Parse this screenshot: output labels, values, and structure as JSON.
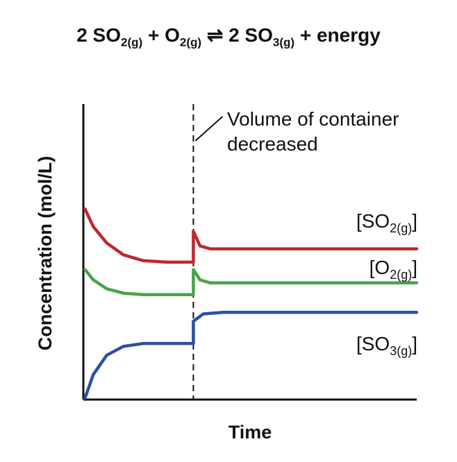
{
  "equation": {
    "coef_left": "2 SO",
    "sub_so2": "2(g)",
    "plus": " + O",
    "sub_o2": "2(g)",
    "arrow": " ⇌ ",
    "coef_right": "2 SO",
    "sub_so3": "3(g)",
    "tail": " + energy"
  },
  "chart_data": {
    "type": "line",
    "title": "",
    "xlabel": "Time",
    "ylabel": "Concentration (mol/L)",
    "xlim": [
      0,
      10
    ],
    "ylim": [
      0,
      10
    ],
    "annotation": {
      "lines": [
        "Volume of container",
        "decreased"
      ],
      "x": 3.3
    },
    "series": [
      {
        "name": "SO2",
        "label_main": "[SO",
        "label_sub": "2(g)",
        "label_end": "]",
        "color": "#c1272d",
        "points": [
          [
            0.05,
            6.45
          ],
          [
            0.3,
            5.85
          ],
          [
            0.7,
            5.3
          ],
          [
            1.2,
            4.9
          ],
          [
            1.8,
            4.7
          ],
          [
            2.5,
            4.65
          ],
          [
            3.3,
            4.65
          ],
          [
            3.3,
            5.7
          ],
          [
            3.5,
            5.2
          ],
          [
            3.8,
            5.1
          ],
          [
            4.5,
            5.1
          ],
          [
            10,
            5.1
          ]
        ]
      },
      {
        "name": "O2",
        "label_main": "[O",
        "label_sub": "2(g)",
        "label_end": "]",
        "color": "#4aa34a",
        "points": [
          [
            0.05,
            4.4
          ],
          [
            0.3,
            4.05
          ],
          [
            0.7,
            3.75
          ],
          [
            1.2,
            3.6
          ],
          [
            1.8,
            3.55
          ],
          [
            3.3,
            3.55
          ],
          [
            3.3,
            4.4
          ],
          [
            3.5,
            4.05
          ],
          [
            3.8,
            3.95
          ],
          [
            4.5,
            3.95
          ],
          [
            10,
            3.95
          ]
        ]
      },
      {
        "name": "SO3",
        "label_main": "[SO",
        "label_sub": "3(g)",
        "label_end": "]",
        "color": "#2d4fa3",
        "points": [
          [
            0.05,
            0.05
          ],
          [
            0.3,
            0.85
          ],
          [
            0.7,
            1.5
          ],
          [
            1.2,
            1.8
          ],
          [
            1.8,
            1.9
          ],
          [
            3.3,
            1.9
          ],
          [
            3.3,
            2.65
          ],
          [
            3.6,
            2.9
          ],
          [
            4.2,
            2.95
          ],
          [
            10,
            2.95
          ]
        ]
      }
    ]
  }
}
